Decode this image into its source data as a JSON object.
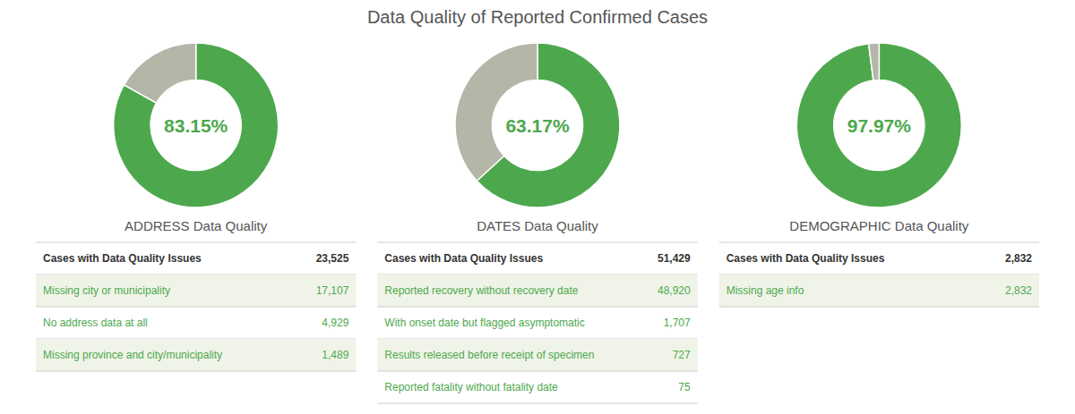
{
  "title": "Data Quality of Reported Confirmed Cases",
  "chart_data": [
    {
      "type": "donut",
      "title": "ADDRESS Data Quality",
      "values": [
        83.15,
        16.85
      ],
      "value_labels": [
        "83.15%",
        null
      ],
      "colors": [
        "#4da84d",
        "#b5b5a8"
      ],
      "table": {
        "header": {
          "label": "Cases with Data Quality Issues",
          "value": 23525,
          "value_label": "23,525"
        },
        "rows": [
          {
            "label": "Missing city or municipality",
            "value": 17107,
            "value_label": "17,107"
          },
          {
            "label": "No address data at all",
            "value": 4929,
            "value_label": "4,929"
          },
          {
            "label": "Missing province and city/municipality",
            "value": 1489,
            "value_label": "1,489"
          }
        ]
      }
    },
    {
      "type": "donut",
      "title": "DATES Data Quality",
      "values": [
        63.17,
        36.83
      ],
      "value_labels": [
        "63.17%",
        null
      ],
      "colors": [
        "#4da84d",
        "#b5b5a8"
      ],
      "table": {
        "header": {
          "label": "Cases with Data Quality Issues",
          "value": 51429,
          "value_label": "51,429"
        },
        "rows": [
          {
            "label": "Reported recovery without recovery date",
            "value": 48920,
            "value_label": "48,920"
          },
          {
            "label": "With onset date but flagged asymptomatic",
            "value": 1707,
            "value_label": "1,707"
          },
          {
            "label": "Results released before receipt of specimen",
            "value": 727,
            "value_label": "727"
          },
          {
            "label": "Reported fatality without fatality date",
            "value": 75,
            "value_label": "75"
          }
        ]
      }
    },
    {
      "type": "donut",
      "title": "DEMOGRAPHIC Data Quality",
      "values": [
        97.97,
        2.03
      ],
      "value_labels": [
        "97.97%",
        null
      ],
      "colors": [
        "#4da84d",
        "#b5b5a8"
      ],
      "table": {
        "header": {
          "label": "Cases with Data Quality Issues",
          "value": 2832,
          "value_label": "2,832"
        },
        "rows": [
          {
            "label": "Missing age info",
            "value": 2832,
            "value_label": "2,832"
          }
        ]
      }
    }
  ]
}
